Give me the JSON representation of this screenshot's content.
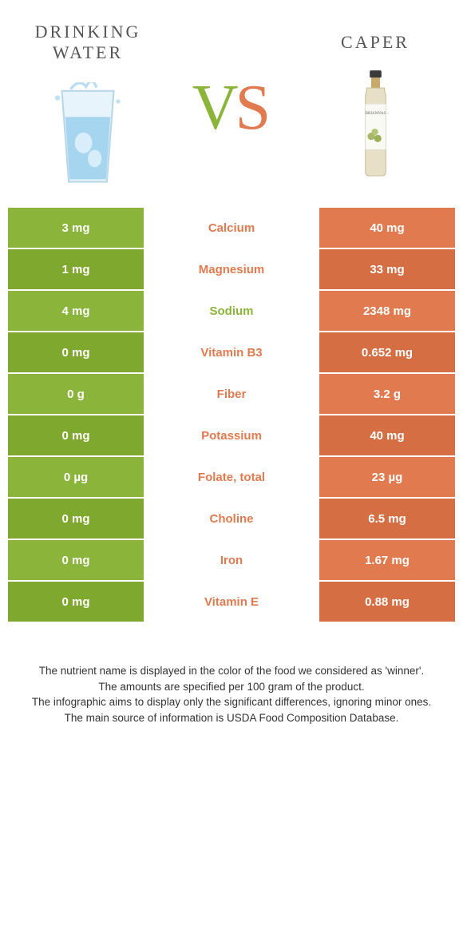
{
  "left_title": "Drinking water",
  "right_title": "Caper",
  "vs_left_letter": "V",
  "vs_right_letter": "S",
  "colors": {
    "left": "#8bb53a",
    "right": "#e27a4f",
    "row_alt_tint": 0,
    "nutrient_default": "#555"
  },
  "rows": [
    {
      "left": "3 mg",
      "nutrient": "Calcium",
      "right": "40 mg",
      "winner": "right"
    },
    {
      "left": "1 mg",
      "nutrient": "Magnesium",
      "right": "33 mg",
      "winner": "right"
    },
    {
      "left": "4 mg",
      "nutrient": "Sodium",
      "right": "2348 mg",
      "winner": "left"
    },
    {
      "left": "0 mg",
      "nutrient": "Vitamin B3",
      "right": "0.652 mg",
      "winner": "right"
    },
    {
      "left": "0 g",
      "nutrient": "Fiber",
      "right": "3.2 g",
      "winner": "right"
    },
    {
      "left": "0 mg",
      "nutrient": "Potassium",
      "right": "40 mg",
      "winner": "right"
    },
    {
      "left": "0 µg",
      "nutrient": "Folate, total",
      "right": "23 µg",
      "winner": "right"
    },
    {
      "left": "0 mg",
      "nutrient": "Choline",
      "right": "6.5 mg",
      "winner": "right"
    },
    {
      "left": "0 mg",
      "nutrient": "Iron",
      "right": "1.67 mg",
      "winner": "right"
    },
    {
      "left": "0 mg",
      "nutrient": "Vitamin E",
      "right": "0.88 mg",
      "winner": "right"
    }
  ],
  "footer_lines": [
    "The nutrient name is displayed in the color of the food we considered as 'winner'.",
    "The amounts are specified per 100 gram of the product.",
    "The infographic aims to display only the significant differences, ignoring minor ones.",
    "The main source of information is USDA Food Composition Database."
  ]
}
